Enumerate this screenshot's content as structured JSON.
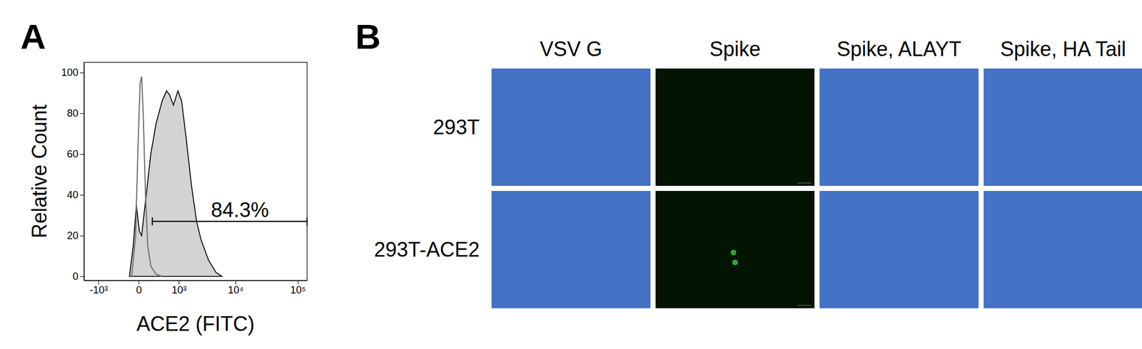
{
  "chart_data": {
    "type": "line",
    "title": "A",
    "xlabel": "ACE2 (FITC)",
    "ylabel": "Relative Count",
    "log": "x",
    "grid": false,
    "xlim": [
      -1900,
      140000
    ],
    "ylim": [
      -2,
      105
    ],
    "xticks": [
      {
        "value": -1000,
        "label": "-10³"
      },
      0,
      {
        "value": 1000,
        "label": "10³"
      },
      {
        "value": 10000,
        "label": "10⁴"
      },
      {
        "value": 100000,
        "label": "10⁵"
      }
    ],
    "yticks": [
      0,
      20,
      40,
      60,
      80,
      100
    ],
    "series": [
      {
        "type": "area",
        "color": "#d3d3d3",
        "x": [
          -119,
          -65,
          -26,
          9,
          35,
          96,
          168,
          268,
          408,
          534,
          631,
          768,
          958,
          1144,
          1397,
          1756,
          2187,
          2625,
          3540,
          4741,
          5960
        ],
        "values": [
          0,
          15,
          35,
          22,
          20,
          40,
          60,
          75,
          86,
          91,
          89,
          84,
          91,
          86,
          68,
          45,
          27,
          18,
          8,
          2,
          0
        ]
      },
      {
        "type": "line",
        "color": "#707070",
        "x": [
          -86,
          -35,
          -9,
          17,
          35,
          55,
          86,
          119,
          168,
          268,
          408
        ],
        "values": [
          0,
          20,
          60,
          95,
          98,
          80,
          40,
          15,
          5,
          1,
          0
        ]
      }
    ],
    "annotations": [
      {
        "text": "84.3%",
        "x": [
          195,
          140000
        ],
        "y": 27
      }
    ]
  },
  "image_grid": {
    "panel_label": "B",
    "columns": [
      "VSV G",
      "Spike",
      "Spike, ALAYT",
      "Spike, HA Tail"
    ],
    "rows": [
      "293T",
      "293T-ACE2"
    ],
    "cells": [
      [
        {
          "color": "#4472c4"
        },
        {
          "color": "#031403",
          "green_cells": 0
        },
        {
          "color": "#4472c4"
        },
        {
          "color": "#4472c4"
        }
      ],
      [
        {
          "color": "#4472c4"
        },
        {
          "color": "#031403",
          "green_cells": 2
        },
        {
          "color": "#4472c4"
        },
        {
          "color": "#4472c4"
        }
      ]
    ]
  }
}
